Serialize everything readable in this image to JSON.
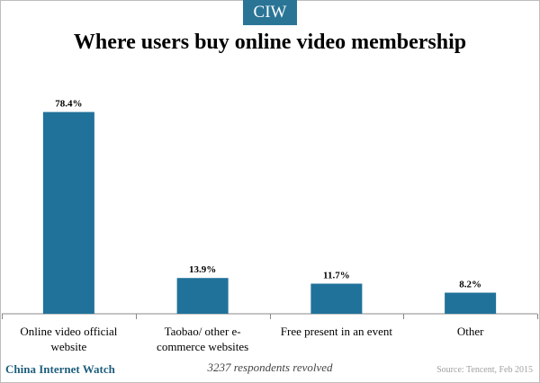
{
  "badge": "CIW",
  "footer": {
    "brand": "China Internet Watch",
    "note": "3237 respondents revolved",
    "source": "Source: Tencent, Feb 2015"
  },
  "colors": {
    "bar": "#20729a",
    "badge": "#2a7596",
    "brand_text": "#1f5f7d"
  },
  "chart_data": {
    "type": "bar",
    "title": "Where users buy online video membership",
    "categories": [
      [
        "Online video official",
        "website"
      ],
      [
        "Taobao/ other e-",
        "commerce websites"
      ],
      [
        "Free present in an event"
      ],
      [
        "Other"
      ]
    ],
    "values": [
      78.4,
      13.9,
      11.7,
      8.2
    ],
    "value_labels": [
      "78.4%",
      "13.9%",
      "11.7%",
      "8.2%"
    ],
    "unit": "%",
    "ylim": [
      0,
      80
    ],
    "grid": false,
    "legend": "none"
  }
}
